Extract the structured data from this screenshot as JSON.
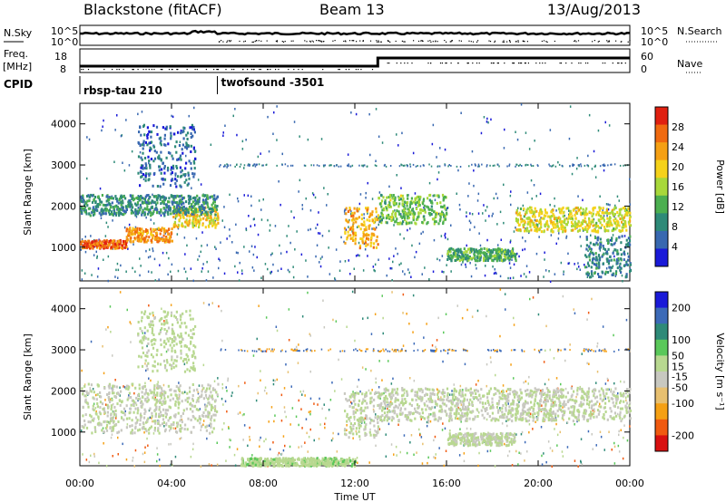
{
  "header": {
    "station": "Blackstone (fitACF)",
    "beam": "Beam 13",
    "date": "13/Aug/2013"
  },
  "top_panels": {
    "nsky_label": "N.Sky",
    "nsearch_label": "N.Search",
    "nsky_ticks": [
      "10^5",
      "10^0"
    ],
    "nsearch_ticks": [
      "10^5",
      "10^0"
    ],
    "freq_label_1": "Freq.",
    "freq_label_2": "[MHz]",
    "freq_ticks": [
      "18",
      "8"
    ],
    "nave_label": "Nave",
    "nave_ticks": [
      "60",
      "0"
    ],
    "cpid_label": "CPID"
  },
  "cpid_segments": [
    {
      "start_hour": 0,
      "label": "rbsp-tau 210"
    },
    {
      "start_hour": 6,
      "label": "twofsound -3501"
    }
  ],
  "chart_data": [
    {
      "type": "heatmap",
      "name": "power",
      "ylabel": "Slant Range [km]",
      "ylim": [
        180,
        4500
      ],
      "yticks": [
        1000,
        2000,
        3000,
        4000
      ],
      "xlim": [
        0,
        24
      ],
      "colorbar_label": "Power [dB]",
      "colorbar_ticks": [
        4,
        8,
        12,
        16,
        20,
        24,
        28
      ],
      "colorbar_range": [
        0,
        32
      ],
      "colors": [
        "#1a1ad8",
        "#3868b0",
        "#2e8a78",
        "#4caf50",
        "#a8d83a",
        "#f5d21a",
        "#f5a014",
        "#f06a10",
        "#e02010"
      ],
      "bands": [
        {
          "t0": 0,
          "t1": 2,
          "r0": 1000,
          "r1": 1200,
          "level": 27
        },
        {
          "t0": 2,
          "t1": 4,
          "r0": 1150,
          "r1": 1500,
          "level": 24
        },
        {
          "t0": 4,
          "t1": 6,
          "r0": 1500,
          "r1": 2000,
          "level": 20
        },
        {
          "t0": 0,
          "t1": 6,
          "r0": 1800,
          "r1": 2300,
          "level": 9
        },
        {
          "t0": 2.5,
          "t1": 5,
          "r0": 2500,
          "r1": 4000,
          "level": 6
        },
        {
          "t0": 11.5,
          "t1": 13,
          "r0": 1000,
          "r1": 2000,
          "level": 22
        },
        {
          "t0": 13,
          "t1": 16,
          "r0": 1600,
          "r1": 2300,
          "level": 14
        },
        {
          "t0": 16,
          "t1": 19,
          "r0": 700,
          "r1": 1000,
          "level": 12
        },
        {
          "t0": 19,
          "t1": 24,
          "r0": 1400,
          "r1": 2000,
          "level": 18
        },
        {
          "t0": 22,
          "t1": 24,
          "r0": 300,
          "r1": 1300,
          "level": 8
        }
      ]
    },
    {
      "type": "heatmap",
      "name": "velocity",
      "ylabel": "Slant Range [km]",
      "ylim": [
        180,
        4500
      ],
      "yticks": [
        1000,
        2000,
        3000,
        4000
      ],
      "xlim": [
        0,
        24
      ],
      "xticks": [
        "00:00",
        "04:00",
        "08:00",
        "12:00",
        "16:00",
        "20:00",
        "00:00"
      ],
      "xlabel": "Time UT",
      "colorbar_label": "Velocity [m s⁻¹]",
      "colorbar_ticks": [
        200,
        100,
        50,
        15,
        -15,
        -50,
        -100,
        -200
      ],
      "colorbar_range": [
        -250,
        250
      ],
      "colors": [
        "#d81010",
        "#f05a10",
        "#f5a014",
        "#e8c070",
        "#c8c8c0",
        "#b8d890",
        "#5ac85a",
        "#2e8a78",
        "#3c6ab8",
        "#1a1ad8"
      ],
      "bands": [
        {
          "t0": 0,
          "t1": 6,
          "r0": 1000,
          "r1": 2200,
          "level": 0
        },
        {
          "t0": 2.5,
          "t1": 5,
          "r0": 2500,
          "r1": 4000,
          "level": 20
        },
        {
          "t0": 11.5,
          "t1": 13,
          "r0": 900,
          "r1": 2000,
          "level": 0
        },
        {
          "t0": 13,
          "t1": 24,
          "r0": 1300,
          "r1": 2100,
          "level": 0
        },
        {
          "t0": 16,
          "t1": 19,
          "r0": 700,
          "r1": 1000,
          "level": 10
        },
        {
          "t0": 7,
          "t1": 12,
          "r0": 200,
          "r1": 400,
          "level": 30
        }
      ]
    }
  ]
}
